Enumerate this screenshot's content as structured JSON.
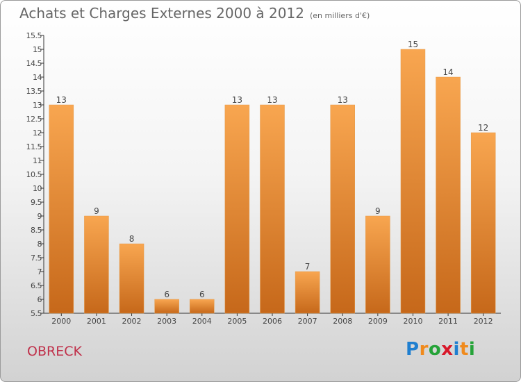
{
  "title": "Achats et Charges Externes 2000 à 2012",
  "unit_label": "(en milliers d'€)",
  "commune": "OBRECK",
  "logo": {
    "text": "Proxiti",
    "letters": [
      {
        "ch": "P",
        "color": "#1f7fd0"
      },
      {
        "ch": "r",
        "color": "#f08a1c"
      },
      {
        "ch": "o",
        "color": "#25a338"
      },
      {
        "ch": "x",
        "color": "#d8182a"
      },
      {
        "ch": "i",
        "color": "#1f7fd0"
      },
      {
        "ch": "t",
        "color": "#f08a1c"
      },
      {
        "ch": "i",
        "color": "#25a338"
      }
    ]
  },
  "colors": {
    "bar_top": "#f8a650",
    "bar_bottom": "#c6681a",
    "axis": "#333333",
    "text": "#444444"
  },
  "chart_data": {
    "type": "bar",
    "categories": [
      "2000",
      "2001",
      "2002",
      "2003",
      "2004",
      "2005",
      "2006",
      "2007",
      "2008",
      "2009",
      "2010",
      "2011",
      "2012"
    ],
    "values": [
      13,
      9,
      8,
      6,
      6,
      13,
      13,
      7,
      13,
      9,
      15,
      14,
      12
    ],
    "data_labels": [
      "13",
      "9",
      "8",
      "6",
      "6",
      "13",
      "13",
      "7",
      "13",
      "9",
      "15",
      "14",
      "12"
    ],
    "title": "Achats et Charges Externes 2000 à 2012",
    "xlabel": "",
    "ylabel": "",
    "ylim": [
      5.5,
      15.5
    ],
    "yticks": [
      5.5,
      6,
      6.5,
      7,
      7.5,
      8,
      8.5,
      9,
      9.5,
      10,
      10.5,
      11,
      11.5,
      12,
      12.5,
      13,
      13.5,
      14,
      14.5,
      15,
      15.5
    ],
    "ytick_labels": [
      "5.5",
      "6",
      "6.5",
      "7",
      "7.5",
      "8",
      "8.5",
      "9",
      "9.5",
      "10",
      "10.5",
      "11",
      "11.5",
      "12",
      "12.5",
      "13",
      "13.5",
      "14",
      "14.5",
      "15",
      "15.5"
    ],
    "grid": false,
    "legend": "none"
  }
}
